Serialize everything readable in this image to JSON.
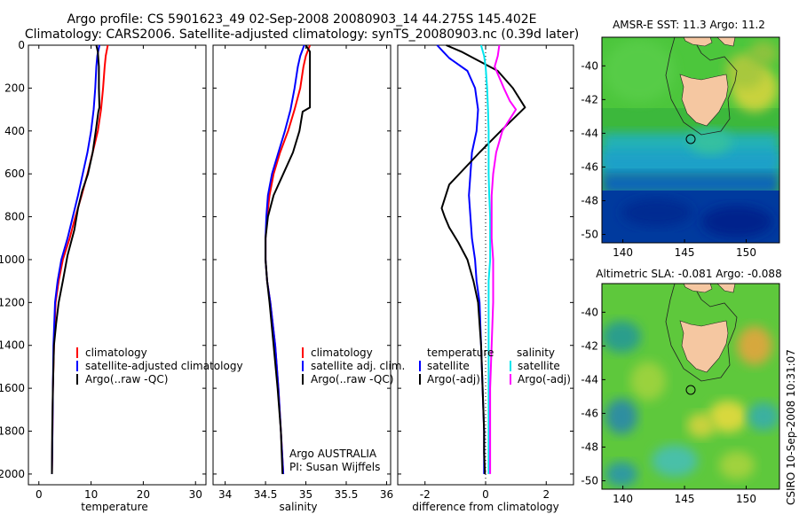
{
  "figure": {
    "title_line1": "Argo profile: CS 5901623_49 02-Sep-2008 20080903_14 44.275S 145.402E",
    "title_line2": "Climatology: CARS2006. Satellite-adjusted climatology: synTS_20080903.nc (0.39d later)",
    "side_label": "CSIRO 10-Sep-2008 10:31:07",
    "colors": {
      "climatology": "#ff0000",
      "satellite": "#0000ff",
      "argo": "#000000",
      "sat_salinity": "#00e5ee",
      "argo_adj_salinity": "#ff00ff",
      "land": "#f5c7a1"
    }
  },
  "chart_data": [
    {
      "id": "temperature",
      "type": "line",
      "xlabel": "temperature",
      "ylabel": "",
      "xlim": [
        -2,
        32
      ],
      "ylim": [
        2050,
        0
      ],
      "xticks": [
        "0",
        "10",
        "20",
        "30"
      ],
      "yticks": [
        "0",
        "200",
        "400",
        "600",
        "800",
        "1000",
        "1200",
        "1400",
        "1600",
        "1800",
        "2000"
      ],
      "legend": [
        "climatology",
        "satellite-adjusted climatology",
        "Argo(..raw -QC)"
      ],
      "series": [
        {
          "name": "climatology",
          "color": "#ff0000",
          "x": [
            13.2,
            12.8,
            12.6,
            12.3,
            11.9,
            11.3,
            10.3,
            9.3,
            8.2,
            7.0,
            5.9,
            4.6,
            3.8,
            3.2,
            2.9,
            2.7,
            2.6,
            2.5
          ],
          "y": [
            0,
            50,
            100,
            200,
            300,
            400,
            500,
            600,
            700,
            800,
            900,
            1000,
            1100,
            1200,
            1400,
            1600,
            1800,
            2000
          ]
        },
        {
          "name": "satellite-adjusted climatology",
          "color": "#0000ff",
          "x": [
            11.6,
            11.2,
            11.0,
            10.8,
            10.5,
            10.0,
            9.3,
            8.4,
            7.5,
            6.5,
            5.5,
            4.3,
            3.6,
            3.1,
            2.8,
            2.7,
            2.6,
            2.5
          ],
          "y": [
            0,
            50,
            100,
            200,
            300,
            400,
            500,
            600,
            700,
            800,
            900,
            1000,
            1100,
            1200,
            1400,
            1600,
            1800,
            2000
          ]
        },
        {
          "name": "Argo(..raw -QC)",
          "color": "#000000",
          "x": [
            11.0,
            11.3,
            11.5,
            11.5,
            11.6,
            11.4,
            10.9,
            10.3,
            9.4,
            8.3,
            7.5,
            6.8,
            5.5,
            4.6,
            3.8,
            3.3,
            2.9,
            2.7,
            2.55,
            2.5
          ],
          "y": [
            0,
            30,
            100,
            200,
            290,
            310,
            400,
            500,
            600,
            680,
            760,
            860,
            980,
            1100,
            1200,
            1300,
            1400,
            1600,
            1800,
            2000
          ]
        }
      ]
    },
    {
      "id": "salinity",
      "type": "line",
      "xlabel": "salinity",
      "ylabel": "",
      "xlim": [
        33.85,
        36.05
      ],
      "ylim": [
        2050,
        0
      ],
      "xticks": [
        "34",
        "34.5",
        "35",
        "35.5",
        "36"
      ],
      "yticks": [],
      "legend": [
        "climatology",
        "satellite adj. clim.",
        "Argo(..raw -QC)"
      ],
      "annotations": [
        "Argo AUSTRALIA",
        "PI: Susan Wijffels"
      ],
      "series": [
        {
          "name": "climatology",
          "color": "#ff0000",
          "x": [
            35.05,
            35.0,
            34.97,
            34.93,
            34.86,
            34.78,
            34.68,
            34.6,
            34.55,
            34.52,
            34.5,
            34.5,
            34.52,
            34.56,
            34.62,
            34.66,
            34.69,
            34.72
          ],
          "y": [
            0,
            50,
            100,
            200,
            300,
            400,
            500,
            600,
            700,
            800,
            900,
            1000,
            1100,
            1200,
            1400,
            1600,
            1800,
            2000
          ]
        },
        {
          "name": "satellite adj. clim.",
          "color": "#0000ff",
          "x": [
            34.98,
            34.93,
            34.9,
            34.86,
            34.81,
            34.74,
            34.66,
            34.58,
            34.53,
            34.51,
            34.5,
            34.5,
            34.52,
            34.56,
            34.62,
            34.66,
            34.69,
            34.72
          ],
          "y": [
            0,
            50,
            100,
            200,
            300,
            400,
            500,
            600,
            700,
            800,
            900,
            1000,
            1100,
            1200,
            1400,
            1600,
            1800,
            2000
          ]
        },
        {
          "name": "Argo(..raw -QC)",
          "color": "#000000",
          "x": [
            35.0,
            35.05,
            35.05,
            35.05,
            35.05,
            34.96,
            34.92,
            34.84,
            34.72,
            34.6,
            34.53,
            34.5,
            34.5,
            34.52,
            34.55,
            34.6,
            34.65,
            34.69,
            34.71
          ],
          "y": [
            0,
            30,
            100,
            200,
            290,
            310,
            400,
            500,
            600,
            700,
            800,
            900,
            1000,
            1100,
            1200,
            1400,
            1600,
            1800,
            2000
          ]
        }
      ]
    },
    {
      "id": "difference",
      "type": "line",
      "xlabel": "difference from climatology",
      "ylabel": "",
      "xlim": [
        -2.9,
        2.9
      ],
      "ylim": [
        2050,
        0
      ],
      "xticks": [
        "-2",
        "0",
        "2"
      ],
      "yticks": [],
      "legend_headers": [
        "temperature",
        "salinity"
      ],
      "legend": [
        "satellite",
        "Argo(-adj)",
        "satellite",
        "Argo(-adj)"
      ],
      "zero_line": true,
      "series": [
        {
          "name": "satellite",
          "group": "temperature",
          "color": "#0000ff",
          "x": [
            -1.6,
            -1.4,
            -1.2,
            -0.6,
            -0.35,
            -0.25,
            -0.3,
            -0.45,
            -0.5,
            -0.55,
            -0.5,
            -0.45,
            -0.35,
            -0.3,
            -0.2,
            -0.15,
            -0.1,
            -0.05,
            -0.05,
            -0.05
          ],
          "y": [
            0,
            30,
            60,
            120,
            200,
            300,
            400,
            500,
            600,
            700,
            800,
            900,
            1000,
            1100,
            1200,
            1400,
            1600,
            1800,
            1900,
            2000
          ]
        },
        {
          "name": "Argo(-adj)",
          "group": "temperature",
          "color": "#000000",
          "x": [
            -1.3,
            -0.8,
            -0.4,
            0.4,
            0.9,
            1.3,
            0.5,
            -0.2,
            -1.2,
            -1.45,
            -1.35,
            -1.2,
            -0.9,
            -0.6,
            -0.4,
            -0.25,
            -0.15,
            -0.1,
            -0.05,
            -0.05,
            -0.02
          ],
          "y": [
            0,
            30,
            60,
            120,
            200,
            290,
            400,
            500,
            650,
            760,
            800,
            850,
            920,
            1000,
            1100,
            1200,
            1400,
            1600,
            1800,
            1900,
            2000
          ]
        },
        {
          "name": "satellite",
          "group": "salinity",
          "color": "#00e5ee",
          "x": [
            -0.15,
            -0.05,
            0.0,
            0.05,
            0.08,
            0.1,
            0.1,
            0.1,
            0.12,
            0.15,
            0.15,
            0.15,
            0.1,
            0.1,
            0.1,
            0.1,
            0.1,
            0.1
          ],
          "y": [
            0,
            50,
            100,
            200,
            300,
            400,
            500,
            600,
            700,
            800,
            900,
            1000,
            1100,
            1200,
            1400,
            1600,
            1800,
            2000
          ]
        },
        {
          "name": "Argo(-adj)",
          "group": "salinity",
          "color": "#ff00ff",
          "x": [
            0.45,
            0.4,
            0.3,
            0.6,
            0.8,
            1.0,
            0.55,
            0.35,
            0.25,
            0.2,
            0.2,
            0.2,
            0.25,
            0.25,
            0.25,
            0.2,
            0.15,
            0.15
          ],
          "y": [
            0,
            50,
            100,
            200,
            260,
            300,
            400,
            500,
            600,
            700,
            800,
            900,
            1000,
            1100,
            1200,
            1400,
            1600,
            2000
          ]
        }
      ]
    },
    {
      "id": "sst-map",
      "type": "heatmap",
      "title": "AMSR-E SST: 11.3 Argo: 11.2",
      "xlim": [
        138.3,
        152.7
      ],
      "ylim": [
        -50.5,
        -38.3
      ],
      "xticks": [
        "140",
        "145",
        "150"
      ],
      "yticks": [
        "-40",
        "-42",
        "-44",
        "-46",
        "-48",
        "-50"
      ],
      "marker": {
        "lon": 145.402,
        "lat": -44.275
      }
    },
    {
      "id": "sla-map",
      "type": "heatmap",
      "title": "Altimetric SLA: -0.081 Argo: -0.088",
      "xlim": [
        138.3,
        152.7
      ],
      "ylim": [
        -50.5,
        -38.3
      ],
      "xticks": [
        "140",
        "145",
        "150"
      ],
      "yticks": [
        "-40",
        "-42",
        "-44",
        "-46",
        "-48",
        "-50"
      ],
      "marker": {
        "lon": 145.402,
        "lat": -44.275
      }
    }
  ]
}
